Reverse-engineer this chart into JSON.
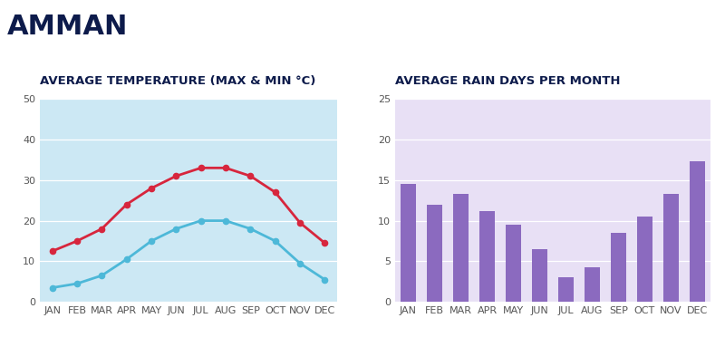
{
  "title": "AMMAN",
  "title_color": "#0d1b4b",
  "months": [
    "JAN",
    "FEB",
    "MAR",
    "APR",
    "MAY",
    "JUN",
    "JUL",
    "AUG",
    "SEP",
    "OCT",
    "NOV",
    "DEC"
  ],
  "temp_max": [
    12.5,
    15.0,
    18.0,
    24.0,
    28.0,
    31.0,
    33.0,
    33.0,
    31.0,
    27.0,
    19.5,
    14.5
  ],
  "temp_min": [
    3.5,
    4.5,
    6.5,
    10.5,
    15.0,
    18.0,
    20.0,
    20.0,
    18.0,
    15.0,
    9.5,
    5.5
  ],
  "rain_days": [
    14.5,
    12.0,
    13.3,
    11.2,
    9.5,
    6.5,
    3.0,
    4.3,
    8.5,
    10.5,
    13.3,
    17.3
  ],
  "temp_title": "AVERAGE TEMPERATURE (MAX & MIN °C)",
  "rain_title": "AVERAGE RAIN DAYS PER MONTH",
  "temp_bg": "#cce8f4",
  "rain_bg": "#e8e0f5",
  "temp_max_color": "#d7263d",
  "temp_min_color": "#4db8d8",
  "bar_color": "#8b6abf",
  "temp_ylim": [
    0,
    50
  ],
  "rain_ylim": [
    0,
    25
  ],
  "temp_yticks": [
    0,
    10,
    20,
    30,
    40,
    50
  ],
  "rain_yticks": [
    0,
    5,
    10,
    15,
    20,
    25
  ],
  "tick_color": "#555555",
  "label_color": "#0d1b4b",
  "gridline_color": "#ffffff",
  "title_fontsize": 22,
  "subtitle_fontsize": 9.5,
  "tick_fontsize": 8,
  "bg_color": "#ffffff"
}
